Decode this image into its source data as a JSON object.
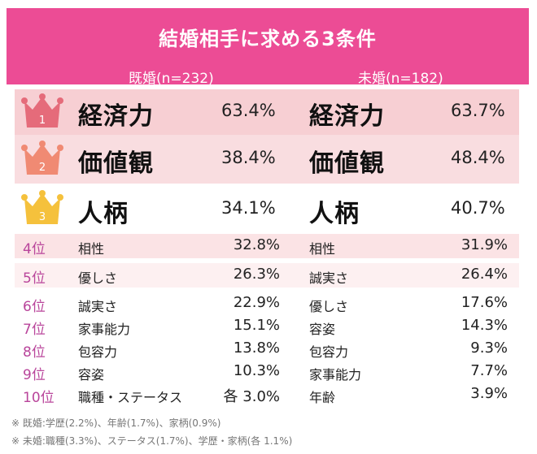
{
  "header": {
    "title": "結婚相手に求める3条件",
    "married_label": "既婚(n=232)",
    "single_label": "未婚(n=182)"
  },
  "top_ranks": [
    {
      "rank": "1",
      "married_item": "経済力",
      "married_pct": "63.4%",
      "single_item": "経済力",
      "single_pct": "63.7%",
      "crown_color": "#e56b7a",
      "band_color": "#f7cfd3"
    },
    {
      "rank": "2",
      "married_item": "価値観",
      "married_pct": "38.4%",
      "single_item": "価値観",
      "single_pct": "48.4%",
      "crown_color": "#f08a73",
      "band_color": "#f9dde0"
    },
    {
      "rank": "3",
      "married_item": "人柄",
      "married_pct": "34.1%",
      "single_item": "人柄",
      "single_pct": "40.7%",
      "crown_color": "#f5c13c",
      "band_color": "#ffffff"
    }
  ],
  "other_ranks": [
    {
      "rank": "4位",
      "married_item": "相性",
      "married_pct": "32.8%",
      "single_item": "相性",
      "single_pct": "31.9%",
      "band_color": "#fbe3e5"
    },
    {
      "rank": "5位",
      "married_item": "優しさ",
      "married_pct": "26.3%",
      "single_item": "誠実さ",
      "single_pct": "26.4%",
      "band_color": "#fdf0f1"
    },
    {
      "rank": "6位",
      "married_item": "誠実さ",
      "married_pct": "22.9%",
      "single_item": "優しさ",
      "single_pct": "17.6%",
      "band_color": "#ffffff"
    },
    {
      "rank": "7位",
      "married_item": "家事能力",
      "married_pct": "15.1%",
      "single_item": "容姿",
      "single_pct": "14.3%",
      "band_color": "#ffffff"
    },
    {
      "rank": "8位",
      "married_item": "包容力",
      "married_pct": "13.8%",
      "single_item": "包容力",
      "single_pct": "9.3%",
      "band_color": "#ffffff"
    },
    {
      "rank": "9位",
      "married_item": "容姿",
      "married_pct": "10.3%",
      "single_item": "家事能力",
      "single_pct": "7.7%",
      "band_color": "#ffffff"
    },
    {
      "rank": "10位",
      "married_item": "職種・ステータス",
      "married_pct": "各 3.0%",
      "single_item": "年齢",
      "single_pct": "3.9%",
      "band_color": "#ffffff"
    }
  ],
  "notes": [
    "※ 既婚:学歴(2.2%)、年齢(1.7%)、家柄(0.9%)",
    "※ 未婚:職種(3.3%)、ステータス(1.7%)、学歴・家柄(各 1.1%)"
  ],
  "colors": {
    "banner": "#ec4c95",
    "rank_text": "#b9459b"
  }
}
